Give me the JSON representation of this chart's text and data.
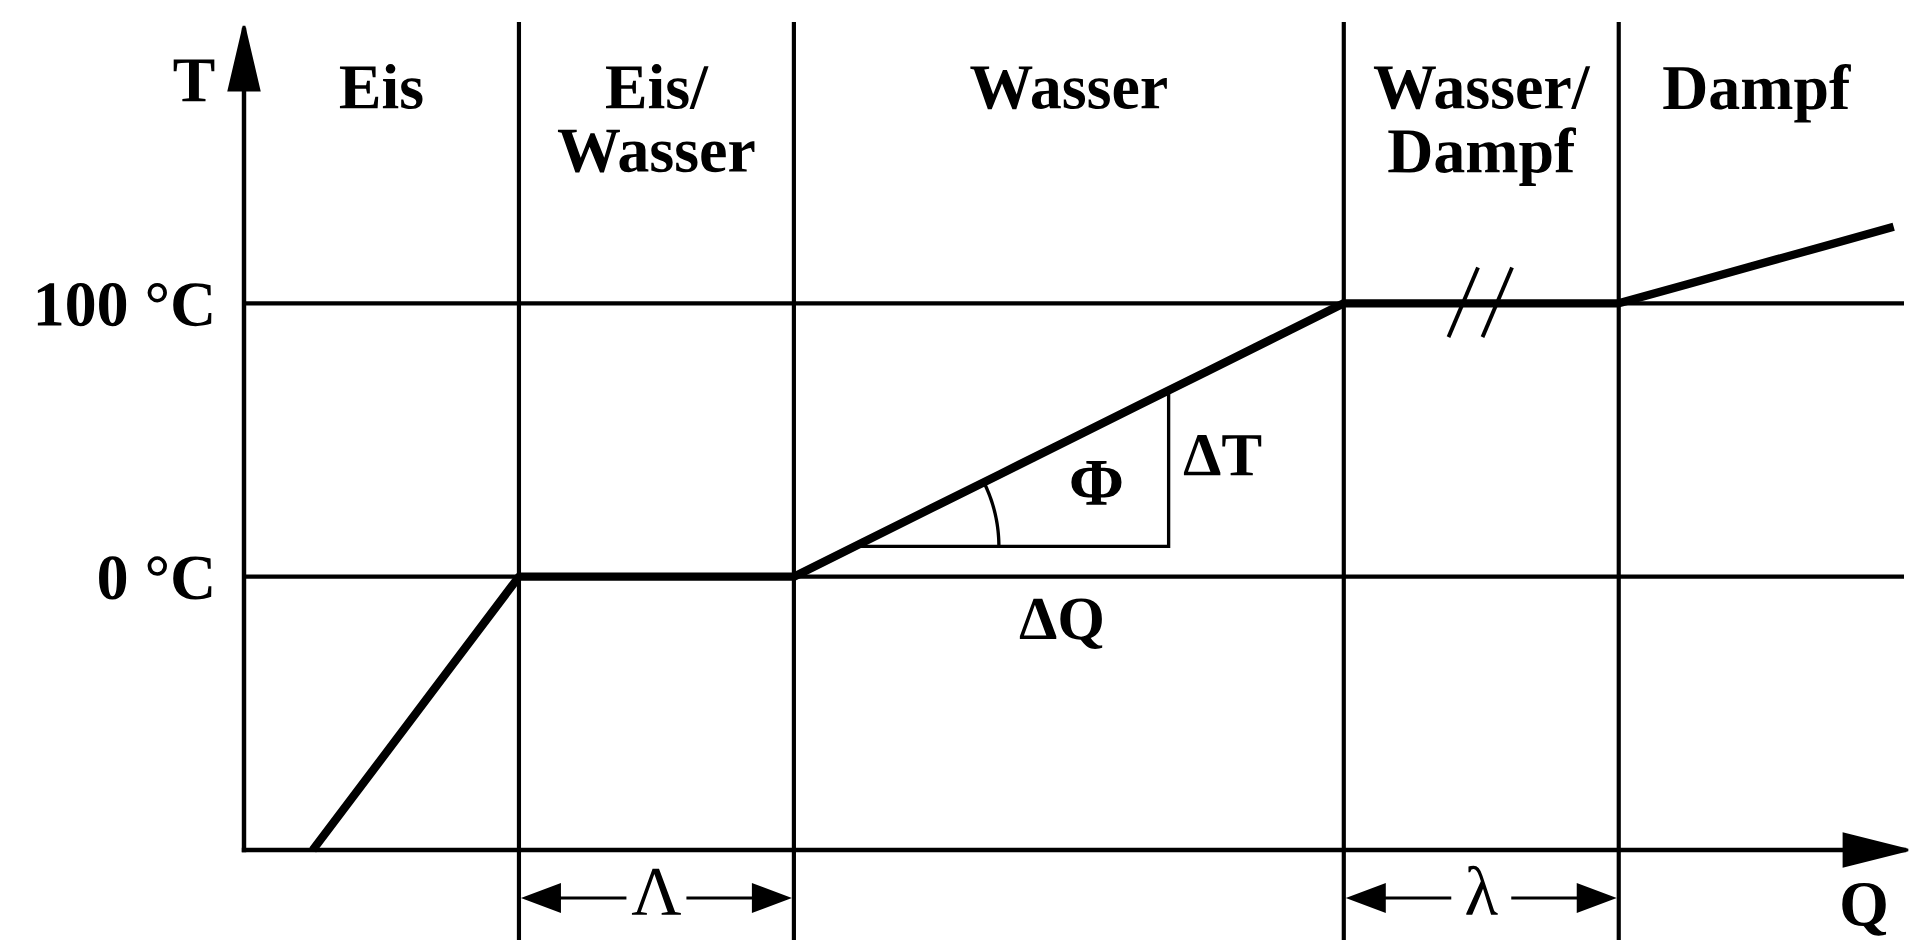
{
  "chart_data": {
    "type": "line",
    "xlabel": "Q",
    "ylabel": "T",
    "categories": [
      null,
      null,
      null,
      null,
      null,
      null,
      null,
      null,
      null,
      null,
      null,
      null,
      null,
      null,
      null,
      null,
      null,
      null,
      null,
      null,
      null,
      null,
      null,
      null,
      null
    ],
    "ylim": [
      -100,
      200
    ],
    "yticks": [
      {
        "value": 0,
        "label": "0 °C"
      },
      {
        "value": 100,
        "label": "100 °C"
      }
    ],
    "grid": true,
    "tick_labels": "y",
    "series": [
      {
        "color": "#000000",
        "values": [
          null,
          -100,
          -66.7,
          -33.3,
          0,
          0,
          0,
          0,
          0,
          12.5,
          25,
          37.5,
          50,
          62.5,
          75,
          87.5,
          100,
          100,
          100,
          100,
          100,
          107,
          114,
          121,
          128
        ]
      }
    ],
    "annotations": [
      "Eis",
      "Eis/\nWasser",
      "Wasser",
      "Wasser/\nDampf",
      "Dampf",
      "Φ",
      "ΔT",
      "ΔQ",
      "Λ",
      "λ"
    ]
  }
}
